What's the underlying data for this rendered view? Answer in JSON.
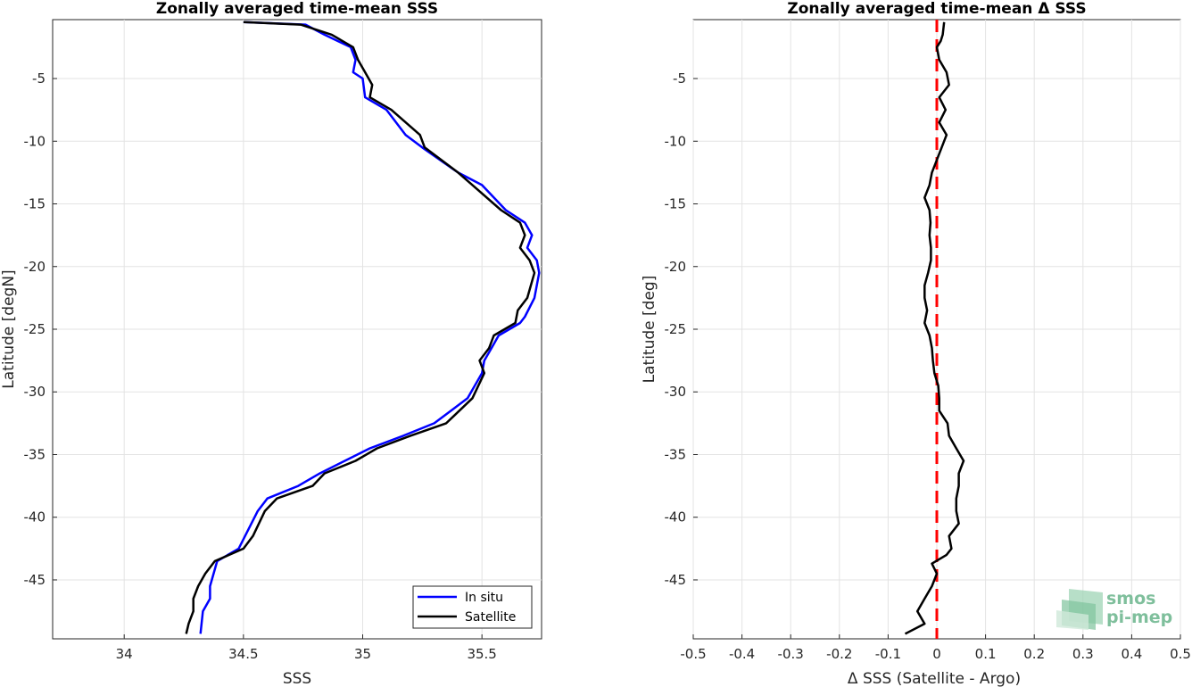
{
  "chart_data": [
    {
      "type": "line",
      "title": "Zonally averaged time-mean SSS",
      "xlabel": "SSS",
      "ylabel": "Latitude [degN]",
      "xlim": [
        33.7,
        35.75
      ],
      "ylim": [
        -49.7,
        -0.3
      ],
      "xticks": [
        34,
        34.5,
        35,
        35.5
      ],
      "xtick_labels": [
        "34",
        "34.5",
        "35",
        "35.5"
      ],
      "yticks": [
        -5,
        -10,
        -15,
        -20,
        -25,
        -30,
        -35,
        -40,
        -45
      ],
      "ytick_labels": [
        "-5",
        "-10",
        "-15",
        "-20",
        "-25",
        "-30",
        "-35",
        "-40",
        "-45"
      ],
      "grid": true,
      "legend_position": "bottom-right",
      "series": [
        {
          "name": "In situ",
          "color": "#0000ff",
          "points": [
            [
              34.5,
              -0.5
            ],
            [
              34.76,
              -0.7
            ],
            [
              34.84,
              -1.5
            ],
            [
              34.95,
              -2.5
            ],
            [
              34.97,
              -3.5
            ],
            [
              34.96,
              -4.5
            ],
            [
              35.0,
              -5.0
            ],
            [
              35.01,
              -6.5
            ],
            [
              35.1,
              -7.5
            ],
            [
              35.18,
              -9.5
            ],
            [
              35.25,
              -10.5
            ],
            [
              35.4,
              -12.5
            ],
            [
              35.5,
              -13.5
            ],
            [
              35.6,
              -15.5
            ],
            [
              35.68,
              -16.5
            ],
            [
              35.71,
              -17.5
            ],
            [
              35.69,
              -18.5
            ],
            [
              35.73,
              -19.5
            ],
            [
              35.74,
              -20.5
            ],
            [
              35.72,
              -22.5
            ],
            [
              35.68,
              -24.0
            ],
            [
              35.66,
              -24.5
            ],
            [
              35.57,
              -25.5
            ],
            [
              35.54,
              -26.5
            ],
            [
              35.51,
              -27.5
            ],
            [
              35.5,
              -28.5
            ],
            [
              35.44,
              -30.5
            ],
            [
              35.3,
              -32.5
            ],
            [
              35.17,
              -33.5
            ],
            [
              35.03,
              -34.5
            ],
            [
              34.82,
              -36.5
            ],
            [
              34.73,
              -37.5
            ],
            [
              34.6,
              -38.5
            ],
            [
              34.56,
              -39.5
            ],
            [
              34.48,
              -42.5
            ],
            [
              34.39,
              -43.5
            ],
            [
              34.36,
              -45.5
            ],
            [
              34.36,
              -46.5
            ],
            [
              34.33,
              -47.5
            ],
            [
              34.32,
              -49.3
            ]
          ]
        },
        {
          "name": "Satellite",
          "color": "#000000",
          "points": [
            [
              34.5,
              -0.5
            ],
            [
              34.74,
              -0.7
            ],
            [
              34.87,
              -1.5
            ],
            [
              34.96,
              -2.5
            ],
            [
              34.98,
              -3.5
            ],
            [
              35.01,
              -4.5
            ],
            [
              35.04,
              -5.5
            ],
            [
              35.03,
              -6.5
            ],
            [
              35.12,
              -7.5
            ],
            [
              35.24,
              -9.5
            ],
            [
              35.26,
              -10.5
            ],
            [
              35.4,
              -12.5
            ],
            [
              35.46,
              -13.5
            ],
            [
              35.58,
              -15.5
            ],
            [
              35.66,
              -16.5
            ],
            [
              35.68,
              -17.5
            ],
            [
              35.66,
              -18.5
            ],
            [
              35.7,
              -19.5
            ],
            [
              35.72,
              -20.5
            ],
            [
              35.69,
              -22.5
            ],
            [
              35.65,
              -23.5
            ],
            [
              35.64,
              -24.5
            ],
            [
              35.55,
              -25.5
            ],
            [
              35.53,
              -26.5
            ],
            [
              35.49,
              -27.5
            ],
            [
              35.51,
              -28.5
            ],
            [
              35.46,
              -30.5
            ],
            [
              35.35,
              -32.5
            ],
            [
              35.2,
              -33.5
            ],
            [
              35.06,
              -34.5
            ],
            [
              34.97,
              -35.5
            ],
            [
              34.84,
              -36.5
            ],
            [
              34.79,
              -37.5
            ],
            [
              34.64,
              -38.5
            ],
            [
              34.59,
              -39.5
            ],
            [
              34.54,
              -41.5
            ],
            [
              34.5,
              -42.5
            ],
            [
              34.38,
              -43.5
            ],
            [
              34.34,
              -44.5
            ],
            [
              34.31,
              -45.5
            ],
            [
              34.29,
              -46.5
            ],
            [
              34.29,
              -47.5
            ],
            [
              34.27,
              -48.5
            ],
            [
              34.26,
              -49.3
            ]
          ]
        }
      ]
    },
    {
      "type": "line",
      "title": "Zonally averaged time-mean Δ SSS",
      "xlabel": "Δ SSS (Satellite - Argo)",
      "ylabel": "Latitude [deg]",
      "xlim": [
        -0.5,
        0.5
      ],
      "ylim": [
        -49.7,
        -0.3
      ],
      "xticks": [
        -0.5,
        -0.4,
        -0.3,
        -0.2,
        -0.1,
        0,
        0.1,
        0.2,
        0.3,
        0.4,
        0.5
      ],
      "xtick_labels": [
        "-0.5",
        "-0.4",
        "-0.3",
        "-0.2",
        "-0.1",
        "0",
        "0.1",
        "0.2",
        "0.3",
        "0.4",
        "0.5"
      ],
      "yticks": [
        -5,
        -10,
        -15,
        -20,
        -25,
        -30,
        -35,
        -40,
        -45
      ],
      "ytick_labels": [
        "-5",
        "-10",
        "-15",
        "-20",
        "-25",
        "-30",
        "-35",
        "-40",
        "-45"
      ],
      "grid": true,
      "zero_line": {
        "x": 0,
        "color": "#ff0000",
        "style": "dashed"
      },
      "series": [
        {
          "color": "#000000",
          "points": [
            [
              0.015,
              -0.5
            ],
            [
              0.012,
              -1.5
            ],
            [
              0.008,
              -2.0
            ],
            [
              0.0,
              -2.5
            ],
            [
              0.005,
              -3.5
            ],
            [
              0.02,
              -4.5
            ],
            [
              0.025,
              -5.5
            ],
            [
              0.005,
              -6.5
            ],
            [
              0.018,
              -7.5
            ],
            [
              0.005,
              -8.5
            ],
            [
              0.02,
              -9.5
            ],
            [
              0.0,
              -11.5
            ],
            [
              -0.01,
              -12.5
            ],
            [
              -0.015,
              -13.5
            ],
            [
              -0.025,
              -14.5
            ],
            [
              -0.015,
              -15.5
            ],
            [
              -0.013,
              -16.5
            ],
            [
              -0.015,
              -17.5
            ],
            [
              -0.012,
              -18.5
            ],
            [
              -0.012,
              -19.5
            ],
            [
              -0.018,
              -20.5
            ],
            [
              -0.025,
              -21.5
            ],
            [
              -0.025,
              -22.5
            ],
            [
              -0.02,
              -23.5
            ],
            [
              -0.025,
              -24.5
            ],
            [
              -0.015,
              -25.5
            ],
            [
              -0.01,
              -26.5
            ],
            [
              -0.008,
              -27.5
            ],
            [
              -0.005,
              -28.5
            ],
            [
              0.003,
              -29.5
            ],
            [
              0.005,
              -30.5
            ],
            [
              0.005,
              -31.5
            ],
            [
              0.022,
              -32.5
            ],
            [
              0.025,
              -33.5
            ],
            [
              0.04,
              -34.5
            ],
            [
              0.055,
              -35.5
            ],
            [
              0.045,
              -36.5
            ],
            [
              0.045,
              -37.5
            ],
            [
              0.04,
              -38.5
            ],
            [
              0.04,
              -39.5
            ],
            [
              0.045,
              -40.5
            ],
            [
              0.025,
              -41.5
            ],
            [
              0.03,
              -42.5
            ],
            [
              0.02,
              -43.0
            ],
            [
              -0.01,
              -43.7
            ],
            [
              0.0,
              -44.5
            ],
            [
              -0.01,
              -45.5
            ],
            [
              -0.025,
              -46.5
            ],
            [
              -0.04,
              -47.5
            ],
            [
              -0.025,
              -48.5
            ],
            [
              -0.065,
              -49.3
            ]
          ]
        }
      ]
    }
  ],
  "legend": {
    "items": [
      {
        "label": "In situ",
        "color": "#0000ff"
      },
      {
        "label": "Satellite",
        "color": "#000000"
      }
    ]
  },
  "logo": {
    "line1": "smos",
    "line2": "pi-mep"
  }
}
